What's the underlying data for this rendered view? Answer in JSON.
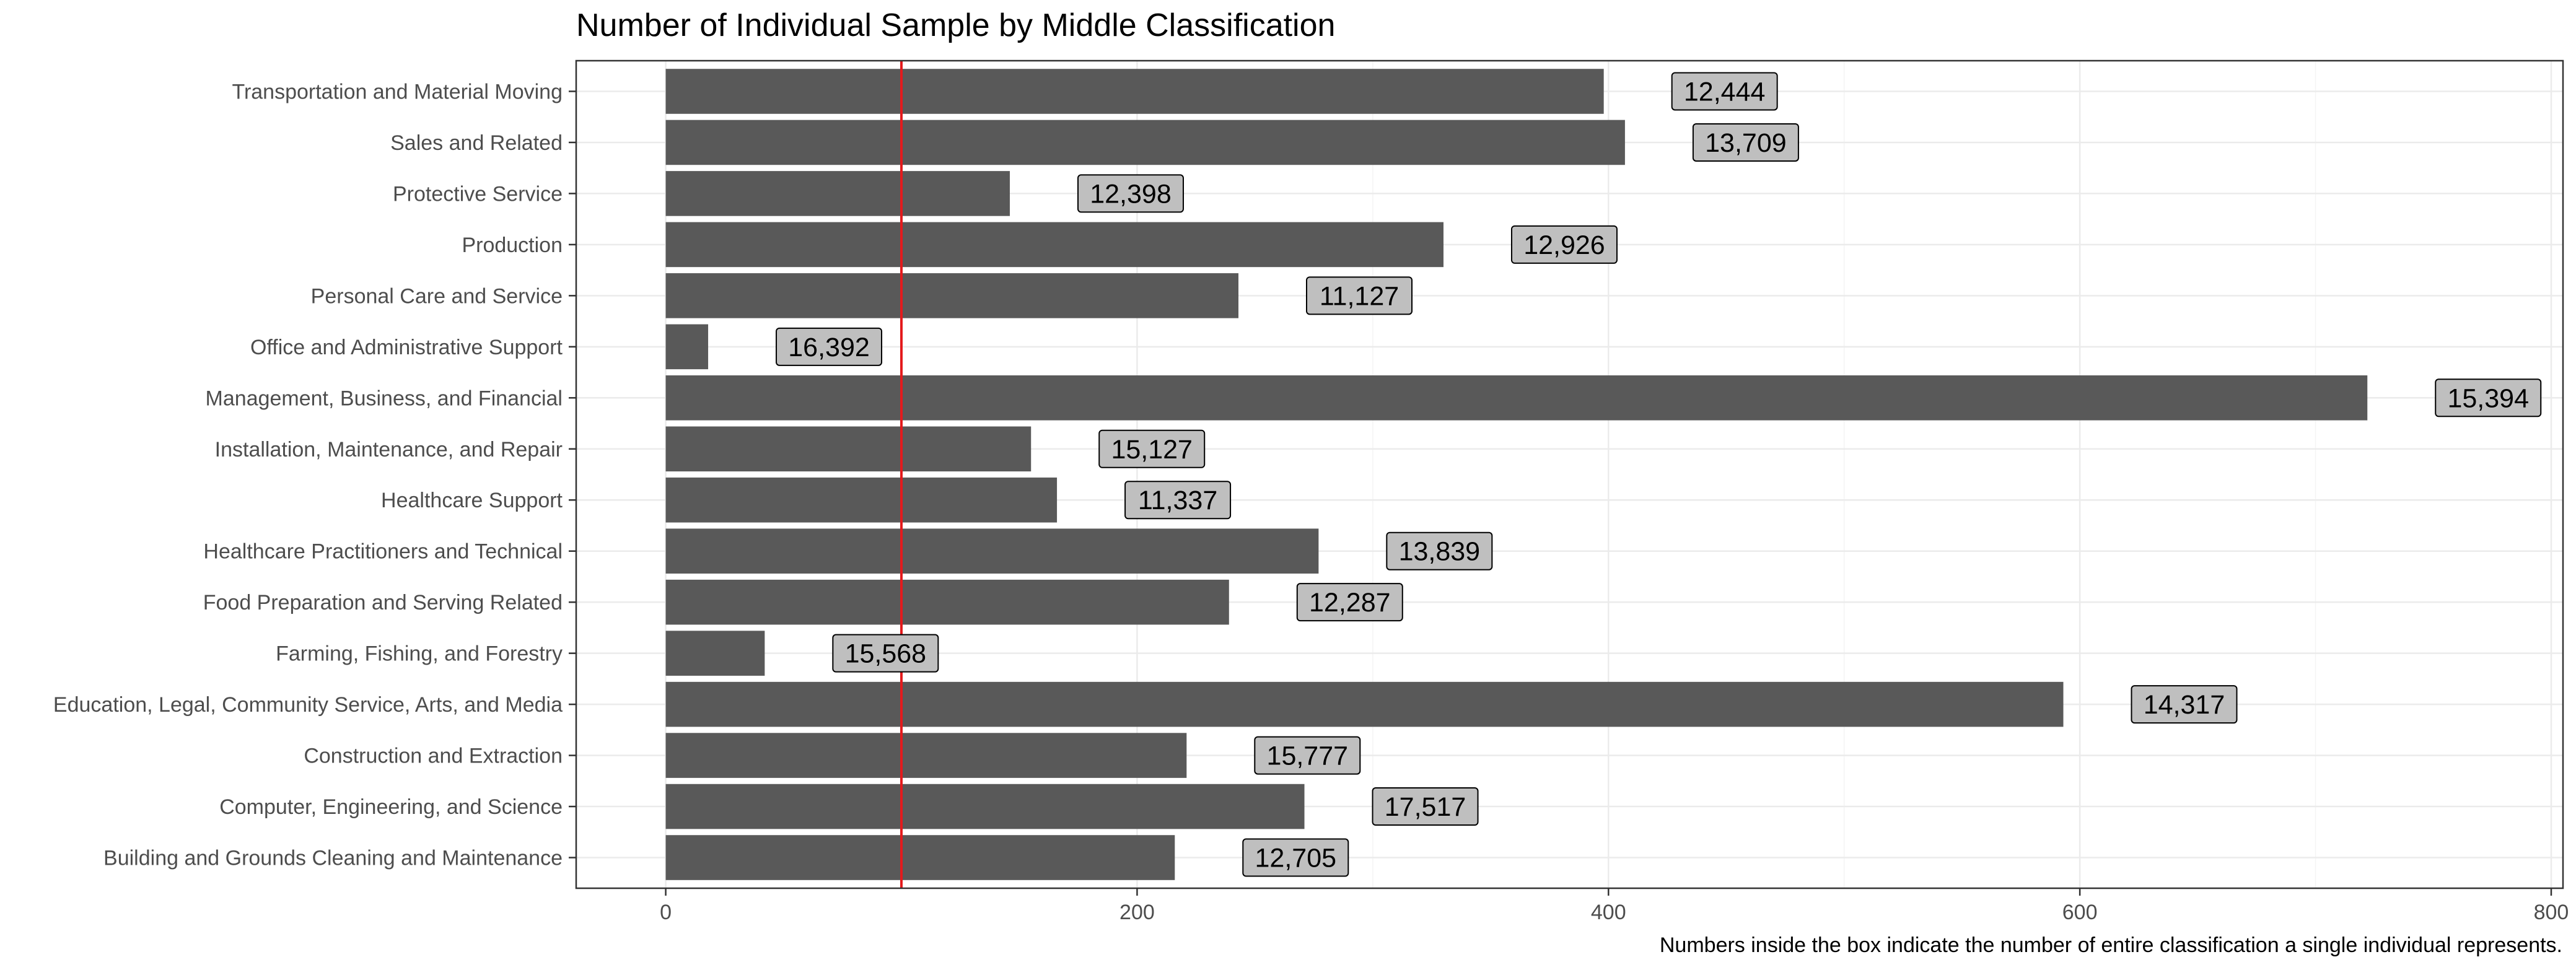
{
  "chart_data": {
    "type": "bar",
    "orientation": "horizontal",
    "title": "Number of Individual Sample by Middle Classification",
    "caption": "Numbers inside the box indicate the number of entire classification a single individual represents.",
    "xlabel": "",
    "ylabel": "",
    "xlim": [
      -38,
      805
    ],
    "x_ticks": [
      0,
      200,
      400,
      600,
      800
    ],
    "x_tick_labels": [
      "0",
      "200",
      "400",
      "600",
      "800"
    ],
    "reference_line": 100,
    "grid": true,
    "legend": "none",
    "colors": {
      "bar": "#595959",
      "reference_line": "#e41a1c",
      "label_fill": "#bfbfbf",
      "grid": "#ebebeb",
      "panel_border": "#333333"
    },
    "categories": [
      "Transportation and Material Moving",
      "Sales and Related",
      "Protective Service",
      "Production",
      "Personal Care and Service",
      "Office and Administrative Support",
      "Management, Business, and Financial",
      "Installation, Maintenance, and Repair",
      "Healthcare Support",
      "Healthcare Practitioners and Technical",
      "Food Preparation and Serving Related",
      "Farming, Fishing, and Forestry",
      "Education, Legal, Community Service, Arts, and Media",
      "Construction and Extraction",
      "Computer, Engineering, and Science",
      "Building and Grounds Cleaning and Maintenance"
    ],
    "values": [
      398,
      407,
      146,
      330,
      243,
      18,
      722,
      155,
      166,
      277,
      239,
      42,
      593,
      221,
      271,
      216
    ],
    "data_labels": [
      "12,444",
      "13,709",
      "12,398",
      "12,926",
      "11,127",
      "16,392",
      "15,394",
      "15,127",
      "11,337",
      "13,839",
      "12,287",
      "15,568",
      "14,317",
      "15,777",
      "17,517",
      "12,705"
    ]
  }
}
